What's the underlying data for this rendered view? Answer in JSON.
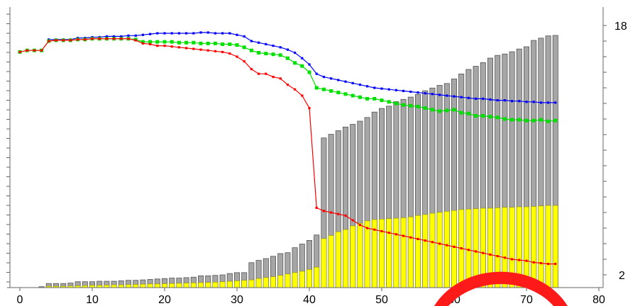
{
  "chart_data": {
    "type": "bar",
    "title": "",
    "xlabel": "",
    "ylabel": "",
    "xlim": [
      0,
      80
    ],
    "y2lim": [
      2,
      18
    ],
    "x_ticks": [
      "0",
      "10",
      "20",
      "30",
      "40",
      "50",
      "60",
      "70",
      "80"
    ],
    "y2_ticks": [
      "2",
      "18"
    ],
    "grid": false,
    "legend": "none",
    "x": [
      3,
      4,
      5,
      6,
      7,
      8,
      9,
      10,
      11,
      12,
      13,
      14,
      15,
      16,
      17,
      18,
      19,
      20,
      21,
      22,
      23,
      24,
      25,
      26,
      27,
      28,
      29,
      30,
      31,
      32,
      33,
      34,
      35,
      36,
      37,
      38,
      39,
      40,
      41,
      42,
      43,
      44,
      45,
      46,
      47,
      48,
      49,
      50,
      51,
      52,
      53,
      54,
      55,
      56,
      57,
      58,
      59,
      60,
      61,
      62,
      63,
      64,
      65,
      66,
      67,
      68,
      69,
      70,
      71,
      72,
      73,
      74
    ],
    "series": [
      {
        "kind": "bar",
        "color": "#a6a6a6",
        "values": [
          0.2,
          0.9,
          0.9,
          0.9,
          1.0,
          1.3,
          1.3,
          1.3,
          1.4,
          1.4,
          1.4,
          1.5,
          1.6,
          1.6,
          1.7,
          1.8,
          1.9,
          2.0,
          2.1,
          2.1,
          2.2,
          2.3,
          2.6,
          2.6,
          2.7,
          2.8,
          3.1,
          3.3,
          3.3,
          5.5,
          6.0,
          6.4,
          6.9,
          7.5,
          7.7,
          8.8,
          9.6,
          10.4,
          11.6,
          33.0,
          33.8,
          34.6,
          35.4,
          36.0,
          36.7,
          37.5,
          38.7,
          39.5,
          40.0,
          41.0,
          41.5,
          42.0,
          42.6,
          43.4,
          44.0,
          44.6,
          45.0,
          46.0,
          47.1,
          48.1,
          48.8,
          49.6,
          50.6,
          51.2,
          51.5,
          52.0,
          52.6,
          53.1,
          54.5,
          55.0,
          55.5,
          55.6
        ]
      },
      {
        "kind": "bar",
        "color": "#ffff00",
        "values": [
          0.05,
          0.3,
          0.3,
          0.3,
          0.35,
          0.4,
          0.45,
          0.5,
          0.5,
          0.55,
          0.6,
          0.6,
          0.65,
          0.7,
          0.75,
          0.8,
          0.8,
          0.85,
          0.9,
          0.95,
          1.0,
          1.05,
          1.1,
          1.15,
          1.2,
          1.3,
          1.4,
          1.5,
          1.6,
          1.7,
          2.0,
          2.2,
          2.4,
          2.7,
          3.0,
          3.3,
          3.6,
          4.0,
          4.5,
          10.8,
          11.5,
          12.3,
          12.8,
          13.6,
          14.2,
          14.7,
          15.0,
          15.1,
          15.2,
          15.3,
          15.4,
          15.6,
          15.9,
          16.1,
          16.4,
          16.6,
          16.8,
          17.0,
          17.2,
          17.3,
          17.4,
          17.5,
          17.5,
          17.6,
          17.7,
          17.7,
          17.8,
          17.8,
          17.9,
          18.0,
          18.1,
          18.1
        ]
      },
      {
        "kind": "line",
        "color": "#0000ff",
        "x": [
          4,
          5,
          6,
          7,
          8,
          9,
          10,
          11,
          12,
          13,
          14,
          15,
          16,
          17,
          18,
          19,
          20,
          21,
          22,
          23,
          24,
          25,
          26,
          27,
          28,
          29,
          30,
          31,
          32,
          33,
          34,
          35,
          36,
          37,
          38,
          39,
          40,
          41,
          42,
          43,
          44,
          45,
          46,
          47,
          48,
          49,
          50,
          51,
          52,
          53,
          54,
          55,
          56,
          57,
          58,
          59,
          60,
          61,
          62,
          63,
          64,
          65,
          66,
          67,
          68,
          69,
          70,
          71,
          72,
          73,
          74
        ],
        "values": [
          17.1,
          17.1,
          17.1,
          17.1,
          17.2,
          17.2,
          17.25,
          17.25,
          17.3,
          17.3,
          17.3,
          17.35,
          17.35,
          17.4,
          17.45,
          17.5,
          17.5,
          17.5,
          17.5,
          17.5,
          17.5,
          17.55,
          17.55,
          17.5,
          17.5,
          17.5,
          17.4,
          17.3,
          17.0,
          16.9,
          16.8,
          16.7,
          16.6,
          16.45,
          16.25,
          15.9,
          15.5,
          14.9,
          14.7,
          14.6,
          14.5,
          14.4,
          14.3,
          14.2,
          14.1,
          14.0,
          13.95,
          13.9,
          13.85,
          13.8,
          13.75,
          13.7,
          13.65,
          13.6,
          13.55,
          13.5,
          13.45,
          13.4,
          13.35,
          13.3,
          13.3,
          13.25,
          13.2,
          13.2,
          13.15,
          13.15,
          13.1,
          13.1,
          13.05,
          13.05,
          13.05
        ]
      },
      {
        "kind": "line",
        "color": "#00e000",
        "x": [
          0,
          1,
          2,
          3,
          4,
          5,
          6,
          7,
          8,
          9,
          10,
          11,
          12,
          13,
          14,
          15,
          16,
          17,
          18,
          19,
          20,
          21,
          22,
          23,
          24,
          25,
          26,
          27,
          28,
          29,
          30,
          31,
          32,
          33,
          34,
          35,
          36,
          37,
          38,
          39,
          40,
          41,
          42,
          43,
          44,
          45,
          46,
          47,
          48,
          49,
          50,
          51,
          52,
          53,
          54,
          55,
          56,
          57,
          58,
          59,
          60,
          61,
          62,
          63,
          64,
          65,
          66,
          67,
          68,
          69,
          70,
          71,
          72,
          73,
          74
        ],
        "values": [
          16.3,
          16.4,
          16.4,
          16.4,
          17.0,
          17.05,
          17.05,
          17.05,
          17.1,
          17.1,
          17.15,
          17.15,
          17.15,
          17.15,
          17.15,
          17.15,
          17.1,
          16.95,
          16.95,
          16.95,
          16.95,
          16.95,
          16.9,
          16.9,
          16.9,
          16.85,
          16.85,
          16.85,
          16.8,
          16.8,
          16.75,
          16.6,
          16.4,
          16.25,
          16.2,
          16.15,
          16.1,
          15.9,
          15.6,
          15.4,
          15.0,
          14.0,
          13.9,
          13.8,
          13.7,
          13.6,
          13.5,
          13.4,
          13.3,
          13.3,
          13.2,
          13.1,
          13.0,
          12.9,
          12.85,
          12.8,
          12.7,
          12.6,
          12.5,
          12.55,
          12.6,
          12.4,
          12.35,
          12.2,
          12.2,
          12.15,
          12.1,
          12.0,
          11.95,
          11.95,
          11.9,
          11.9,
          11.95,
          11.85,
          11.9
        ]
      },
      {
        "kind": "line",
        "color": "#ff0000",
        "x": [
          0,
          1,
          2,
          3,
          4,
          5,
          6,
          7,
          8,
          9,
          10,
          11,
          12,
          13,
          14,
          15,
          16,
          17,
          18,
          19,
          20,
          21,
          22,
          23,
          24,
          25,
          26,
          27,
          28,
          29,
          30,
          31,
          32,
          33,
          34,
          35,
          36,
          37,
          38,
          39,
          40,
          41,
          42,
          43,
          44,
          45,
          46,
          47,
          48,
          49,
          50,
          51,
          52,
          53,
          54,
          55,
          56,
          57,
          58,
          59,
          60,
          61,
          62,
          63,
          64,
          65,
          66,
          67,
          68,
          69,
          70,
          71,
          72,
          73,
          74
        ],
        "values": [
          16.3,
          16.4,
          16.4,
          16.4,
          17.0,
          17.05,
          17.05,
          17.05,
          17.1,
          17.1,
          17.15,
          17.15,
          17.15,
          17.15,
          17.15,
          17.15,
          17.05,
          16.85,
          16.8,
          16.7,
          16.7,
          16.65,
          16.6,
          16.55,
          16.5,
          16.45,
          16.4,
          16.35,
          16.3,
          16.2,
          16.0,
          15.7,
          15.2,
          14.9,
          14.9,
          14.7,
          14.6,
          14.2,
          13.9,
          13.5,
          12.7,
          6.3,
          6.1,
          6.0,
          5.9,
          5.8,
          5.5,
          5.2,
          5.0,
          4.9,
          4.8,
          4.7,
          4.6,
          4.5,
          4.4,
          4.3,
          4.2,
          4.1,
          4.0,
          3.9,
          3.8,
          3.7,
          3.6,
          3.5,
          3.4,
          3.3,
          3.2,
          3.1,
          3.0,
          2.95,
          2.9,
          2.8,
          2.75,
          2.7,
          2.7
        ]
      }
    ]
  }
}
